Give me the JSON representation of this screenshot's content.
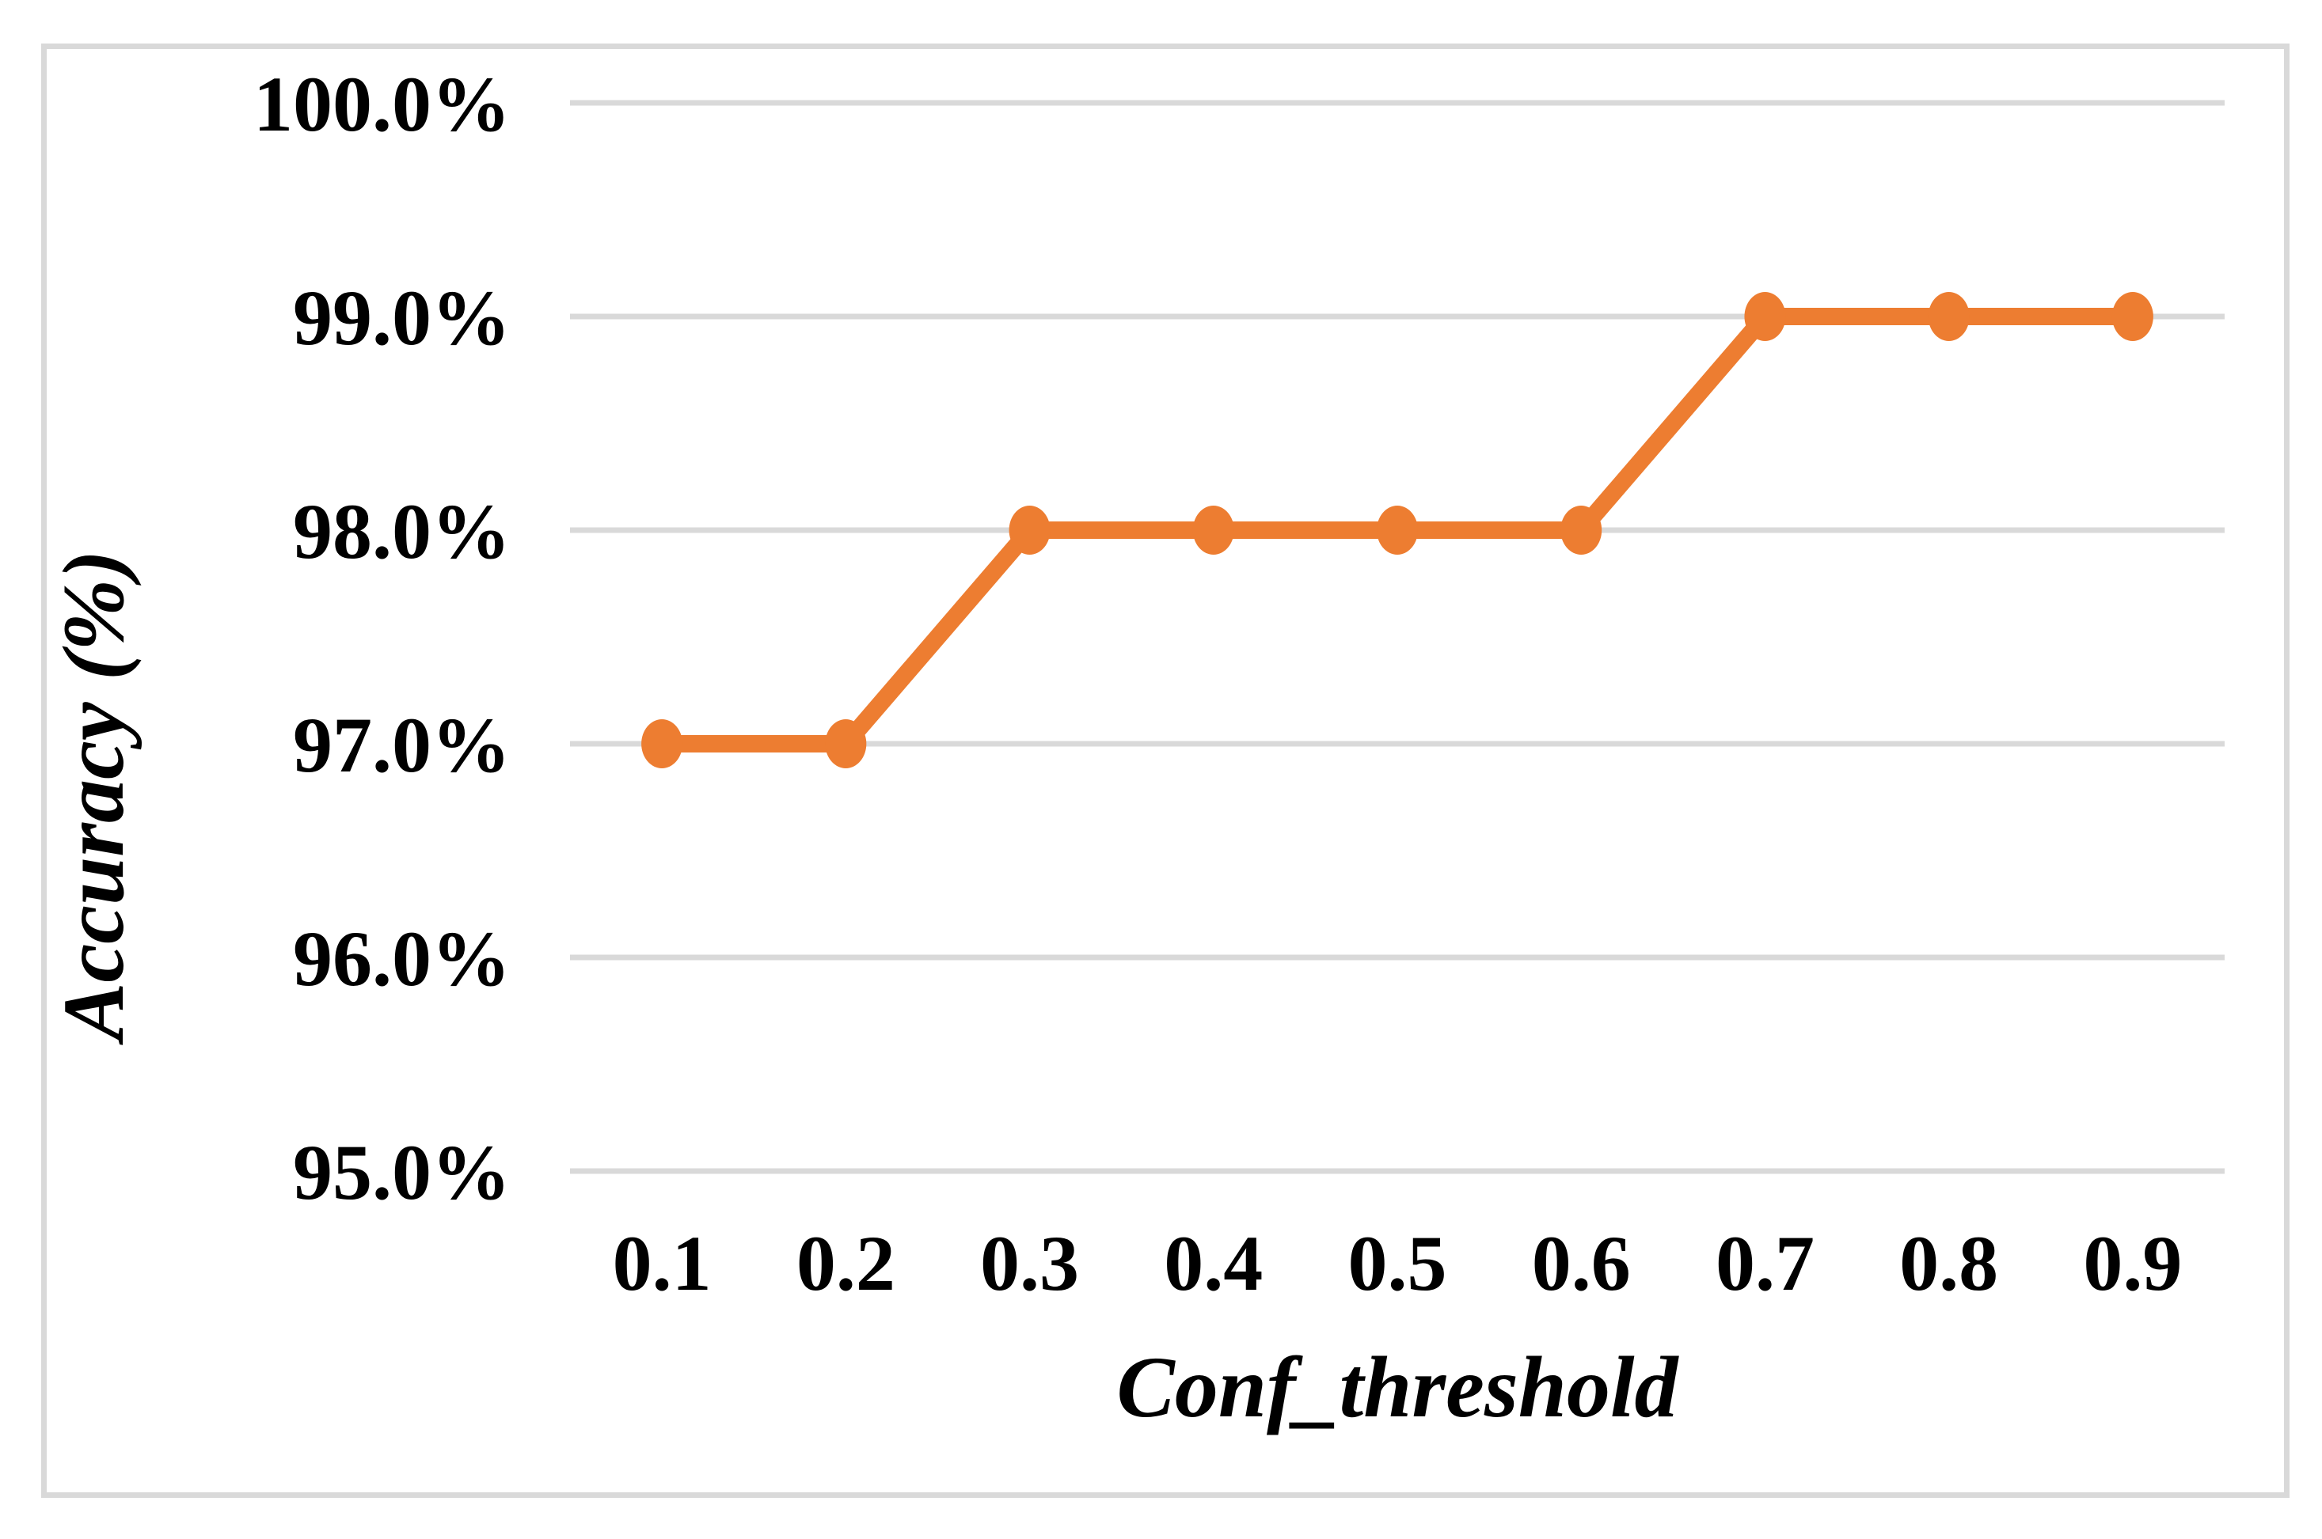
{
  "chart_data": {
    "type": "line",
    "title": "",
    "categories": [
      "0.1",
      "0.2",
      "0.3",
      "0.4",
      "0.5",
      "0.6",
      "0.7",
      "0.8",
      "0.9"
    ],
    "series": [
      {
        "name": "Accuracy",
        "values": [
          97.0,
          97.0,
          98.0,
          98.0,
          98.0,
          98.0,
          99.0,
          99.0,
          99.0
        ],
        "color": "#ED7D31",
        "marker": "circle"
      }
    ],
    "xlabel": "Conf_threshold",
    "ylabel": "Accuracy (%)",
    "ylim": [
      95.0,
      100.0
    ],
    "ytick_labels": [
      "95.0%",
      "96.0%",
      "97.0%",
      "98.0%",
      "99.0%",
      "100.0%"
    ],
    "xtick_labels": [
      "0.1",
      "0.2",
      "0.3",
      "0.4",
      "0.5",
      "0.6",
      "0.7",
      "0.8",
      "0.9"
    ],
    "grid": "horizontal-only",
    "legend": "none",
    "colors": {
      "series": "#ED7D31",
      "gridline": "#D9D9D9",
      "frame_border": "#D9D9D9",
      "text": "#000000",
      "background": "#FFFFFF"
    }
  }
}
